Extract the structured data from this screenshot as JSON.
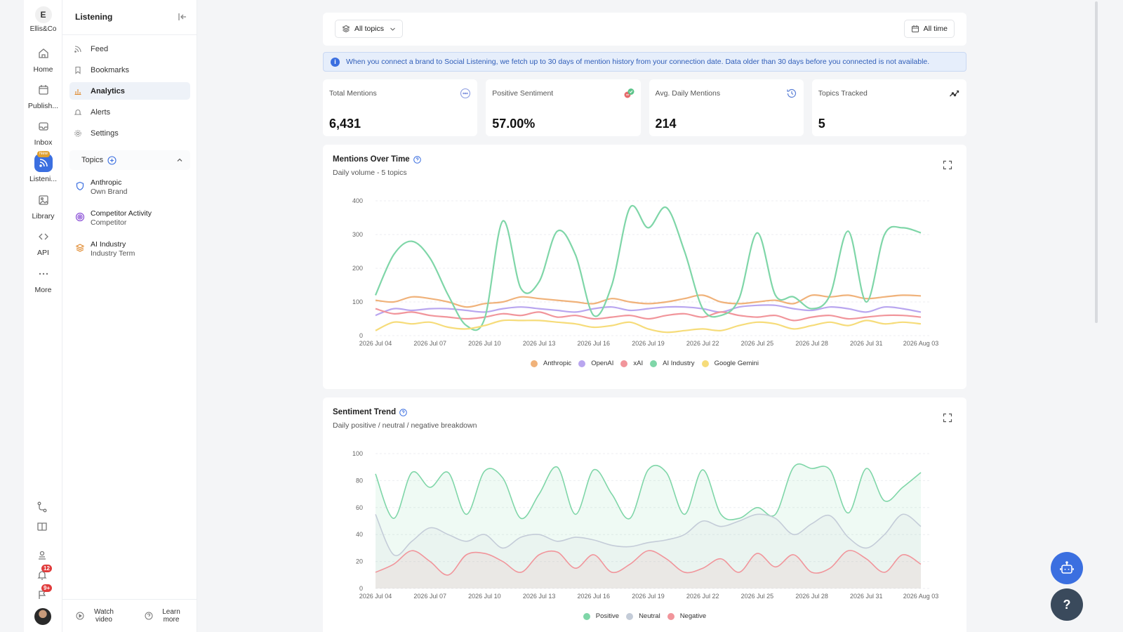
{
  "brand": {
    "logo": "E",
    "name": "Ellis&Co"
  },
  "rail": [
    {
      "label": "Home",
      "icon": "home-icon"
    },
    {
      "label": "Publish...",
      "icon": "calendar-icon"
    },
    {
      "label": "Inbox",
      "icon": "inbox-icon"
    },
    {
      "label": "Listeni...",
      "icon": "rss-icon",
      "badge": "New"
    },
    {
      "label": "Library",
      "icon": "image-icon"
    },
    {
      "label": "API",
      "icon": "code-icon"
    },
    {
      "label": "More",
      "icon": "more-icon"
    }
  ],
  "rail_notifications": {
    "bell": "12",
    "flag": "9+"
  },
  "sidebar": {
    "title": "Listening",
    "nav": [
      {
        "label": "Feed",
        "icon": "rss-icon"
      },
      {
        "label": "Bookmarks",
        "icon": "bookmark-icon"
      },
      {
        "label": "Analytics",
        "icon": "bar-chart-icon"
      },
      {
        "label": "Alerts",
        "icon": "bell-icon"
      },
      {
        "label": "Settings",
        "icon": "gear-icon"
      }
    ],
    "topics_label": "Topics",
    "topics": [
      {
        "name": "Anthropic",
        "type": "Own Brand",
        "icon": "shield-icon",
        "color": "#3b6fe0"
      },
      {
        "name": "Competitor Activity",
        "type": "Competitor",
        "icon": "target-icon",
        "color": "#8a4fd6"
      },
      {
        "name": "AI Industry",
        "type": "Industry Term",
        "icon": "layers-icon",
        "color": "#e08a2f"
      }
    ],
    "footer": {
      "watch": "Watch video",
      "learn": "Learn more"
    }
  },
  "filters": {
    "topics": "All topics",
    "time": "All time"
  },
  "info_banner": "When you connect a brand to Social Listening, we fetch up to 30 days of mention history from your connection date. Data older than 30 days before you connected is not available.",
  "metrics": [
    {
      "label": "Total Mentions",
      "value": "6,431",
      "icon": "chat-icon"
    },
    {
      "label": "Positive Sentiment",
      "value": "57.00%",
      "icon": "sentiment-icon"
    },
    {
      "label": "Avg. Daily Mentions",
      "value": "214",
      "icon": "history-icon"
    },
    {
      "label": "Topics Tracked",
      "value": "5",
      "icon": "trend-icon"
    }
  ],
  "mentions_panel": {
    "title": "Mentions Over Time",
    "subtitle": "Daily volume - 5 topics"
  },
  "sentiment_panel": {
    "title": "Sentiment Trend",
    "subtitle": "Daily positive / neutral / negative breakdown"
  },
  "chart_data": [
    {
      "type": "line",
      "title": "Mentions Over Time",
      "x": [
        "2026 Jul 04",
        "2026 Jul 05",
        "2026 Jul 06",
        "2026 Jul 07",
        "2026 Jul 08",
        "2026 Jul 09",
        "2026 Jul 10",
        "2026 Jul 11",
        "2026 Jul 12",
        "2026 Jul 13",
        "2026 Jul 14",
        "2026 Jul 15",
        "2026 Jul 16",
        "2026 Jul 17",
        "2026 Jul 18",
        "2026 Jul 19",
        "2026 Jul 20",
        "2026 Jul 21",
        "2026 Jul 22",
        "2026 Jul 23",
        "2026 Jul 24",
        "2026 Jul 25",
        "2026 Jul 26",
        "2026 Jul 27",
        "2026 Jul 28",
        "2026 Jul 29",
        "2026 Jul 30",
        "2026 Jul 31",
        "2026 Aug 01",
        "2026 Aug 02",
        "2026 Aug 03"
      ],
      "xticks": [
        "2026 Jul 04",
        "2026 Jul 07",
        "2026 Jul 10",
        "2026 Jul 13",
        "2026 Jul 16",
        "2026 Jul 19",
        "2026 Jul 22",
        "2026 Jul 25",
        "2026 Jul 28",
        "2026 Jul 31",
        "2026 Aug 03"
      ],
      "ylim": [
        0,
        400
      ],
      "yticks": [
        0,
        100,
        200,
        300,
        400
      ],
      "grid": true,
      "legend": "bottom",
      "series": [
        {
          "name": "Anthropic",
          "color": "#f0b27a",
          "values": [
            105,
            100,
            115,
            110,
            100,
            85,
            95,
            100,
            115,
            110,
            105,
            100,
            95,
            110,
            100,
            95,
            100,
            110,
            120,
            100,
            95,
            100,
            105,
            95,
            120,
            115,
            120,
            110,
            115,
            120,
            118
          ]
        },
        {
          "name": "OpenAI",
          "color": "#b9a6ef",
          "values": [
            60,
            80,
            75,
            80,
            80,
            75,
            70,
            80,
            85,
            80,
            75,
            70,
            80,
            85,
            75,
            80,
            85,
            85,
            80,
            70,
            85,
            90,
            90,
            80,
            75,
            85,
            80,
            70,
            85,
            80,
            70
          ]
        },
        {
          "name": "xAI",
          "color": "#f1959b",
          "values": [
            80,
            65,
            70,
            60,
            55,
            50,
            55,
            65,
            60,
            70,
            55,
            60,
            50,
            55,
            60,
            50,
            60,
            65,
            55,
            70,
            60,
            55,
            60,
            45,
            55,
            60,
            50,
            55,
            60,
            60,
            55
          ]
        },
        {
          "name": "AI Industry",
          "color": "#7fd6a8",
          "values": [
            120,
            240,
            280,
            230,
            120,
            30,
            50,
            340,
            140,
            160,
            310,
            240,
            60,
            150,
            380,
            320,
            380,
            250,
            80,
            60,
            110,
            305,
            120,
            115,
            80,
            120,
            310,
            100,
            300,
            320,
            305
          ]
        },
        {
          "name": "Google Gemini",
          "color": "#f6dc7a",
          "values": [
            15,
            40,
            35,
            40,
            25,
            20,
            30,
            45,
            45,
            45,
            40,
            35,
            25,
            30,
            40,
            20,
            10,
            15,
            20,
            15,
            30,
            40,
            35,
            20,
            30,
            40,
            30,
            45,
            35,
            40,
            35
          ]
        }
      ]
    },
    {
      "type": "area",
      "title": "Sentiment Trend",
      "x": [
        "2026 Jul 04",
        "2026 Jul 05",
        "2026 Jul 06",
        "2026 Jul 07",
        "2026 Jul 08",
        "2026 Jul 09",
        "2026 Jul 10",
        "2026 Jul 11",
        "2026 Jul 12",
        "2026 Jul 13",
        "2026 Jul 14",
        "2026 Jul 15",
        "2026 Jul 16",
        "2026 Jul 17",
        "2026 Jul 18",
        "2026 Jul 19",
        "2026 Jul 20",
        "2026 Jul 21",
        "2026 Jul 22",
        "2026 Jul 23",
        "2026 Jul 24",
        "2026 Jul 25",
        "2026 Jul 26",
        "2026 Jul 27",
        "2026 Jul 28",
        "2026 Jul 29",
        "2026 Jul 30",
        "2026 Jul 31",
        "2026 Aug 01",
        "2026 Aug 02",
        "2026 Aug 03"
      ],
      "xticks": [
        "2026 Jul 04",
        "2026 Jul 07",
        "2026 Jul 10",
        "2026 Jul 13",
        "2026 Jul 16",
        "2026 Jul 19",
        "2026 Jul 22",
        "2026 Jul 25",
        "2026 Jul 28",
        "2026 Jul 31",
        "2026 Aug 03"
      ],
      "ylim": [
        0,
        100
      ],
      "yticks": [
        0,
        20,
        40,
        60,
        80,
        100
      ],
      "grid": true,
      "legend": "bottom",
      "series": [
        {
          "name": "Positive",
          "color": "#7fd6a8",
          "values": [
            85,
            52,
            86,
            75,
            86,
            55,
            87,
            82,
            52,
            70,
            90,
            55,
            88,
            70,
            52,
            88,
            86,
            55,
            88,
            55,
            52,
            60,
            55,
            90,
            89,
            88,
            56,
            89,
            65,
            75,
            86
          ]
        },
        {
          "name": "Neutral",
          "color": "#c4ccd8",
          "values": [
            55,
            25,
            35,
            45,
            40,
            35,
            40,
            30,
            38,
            40,
            35,
            38,
            36,
            32,
            31,
            34,
            36,
            40,
            50,
            46,
            50,
            55,
            52,
            40,
            48,
            54,
            38,
            30,
            40,
            55,
            46
          ]
        },
        {
          "name": "Negative",
          "color": "#f1959b",
          "values": [
            12,
            18,
            28,
            20,
            10,
            25,
            26,
            20,
            12,
            25,
            27,
            15,
            25,
            12,
            18,
            28,
            22,
            12,
            15,
            22,
            12,
            26,
            16,
            25,
            12,
            15,
            28,
            22,
            12,
            25,
            18
          ]
        }
      ]
    }
  ]
}
